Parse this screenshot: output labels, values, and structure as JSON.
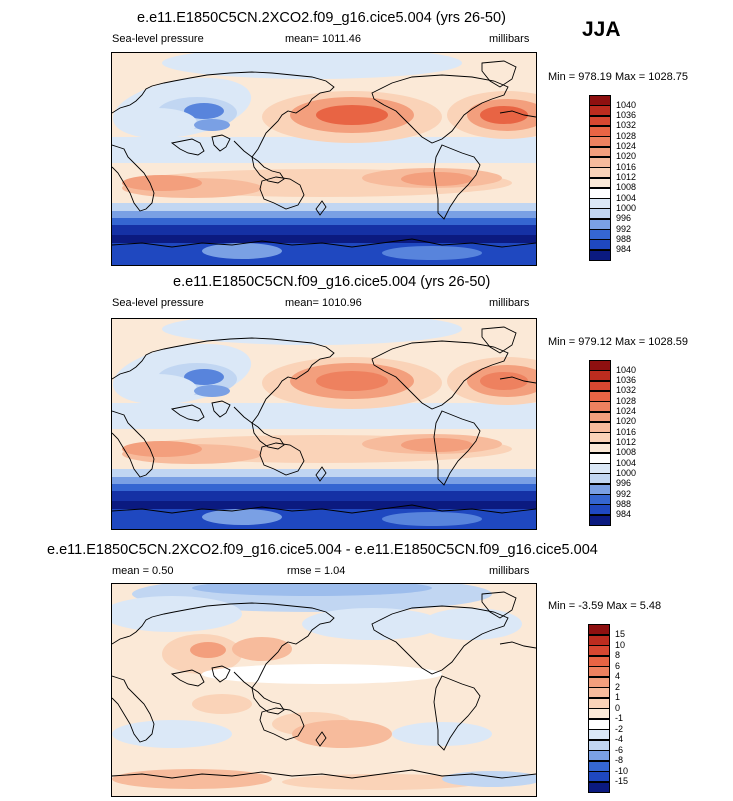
{
  "season": "JJA",
  "colors": {
    "pos": [
      "#fbe9d7",
      "#fad3b8",
      "#f7bb9c",
      "#f39f7d",
      "#ee815f",
      "#e86444",
      "#d74731",
      "#bc2c1f",
      "#8e1010"
    ],
    "neg": [
      "#dbe8f7",
      "#c1d6f2",
      "#9dbdec",
      "#7aa0e4",
      "#5884dc",
      "#3566d1",
      "#1f48c0",
      "#1531a5",
      "#0b1a80"
    ]
  },
  "panels": [
    {
      "title": "e.e11.E1850C5CN.2XCO2.f09_g16.cice5.004 (yrs 26-50)",
      "left_label": "Sea-level pressure",
      "mid_label": "mean= 1011.46",
      "right_label": "millibars",
      "minmax": "Min = 978.19 Max = 1028.75",
      "levels": [
        "1040",
        "1036",
        "1032",
        "1028",
        "1024",
        "1020",
        "1016",
        "1012",
        "1008",
        "1004",
        "1000",
        "996",
        "992",
        "988",
        "984"
      ]
    },
    {
      "title": "e.e11.E1850C5CN.f09_g16.cice5.004 (yrs 26-50)",
      "left_label": "Sea-level pressure",
      "mid_label": "mean= 1010.96",
      "right_label": "millibars",
      "minmax": "Min = 979.12 Max = 1028.59",
      "levels": [
        "1040",
        "1036",
        "1032",
        "1028",
        "1024",
        "1020",
        "1016",
        "1012",
        "1008",
        "1004",
        "1000",
        "996",
        "992",
        "988",
        "984"
      ]
    },
    {
      "title": "e.e11.E1850C5CN.2XCO2.f09_g16.cice5.004 - e.e11.E1850C5CN.f09_g16.cice5.004",
      "left_label": "mean =   0.50",
      "mid_label": "rmse =   1.04",
      "right_label": "millibars",
      "minmax": "Min =  -3.59 Max =   5.48",
      "levels": [
        "15",
        "10",
        "8",
        "6",
        "4",
        "2",
        "1",
        "0",
        "-1",
        "-2",
        "-4",
        "-6",
        "-8",
        "-10",
        "-15"
      ]
    }
  ]
}
